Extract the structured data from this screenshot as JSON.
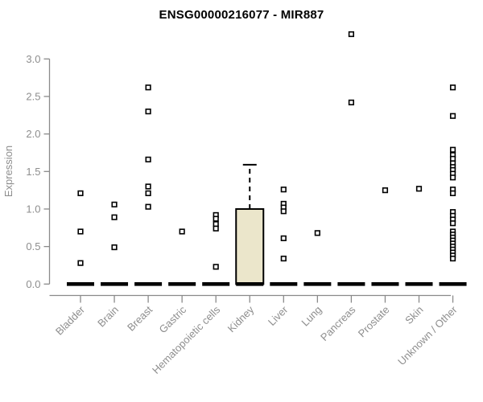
{
  "title": "ENSG00000216077 - MIR887",
  "chart_data": {
    "type": "boxplot",
    "title": "ENSG00000216077 - MIR887",
    "xlabel": "",
    "ylabel": "Expression",
    "ylim": [
      0.0,
      3.0
    ],
    "yticks": [
      "0.0",
      "0.5",
      "1.0",
      "1.5",
      "2.0",
      "2.5",
      "3.0"
    ],
    "grid": false,
    "legend_position": "none",
    "marker": "open-square",
    "categories": [
      "Bladder",
      "Brain",
      "Breast",
      "Gastric",
      "Hematopoietic cells",
      "Kidney",
      "Liver",
      "Lung",
      "Pancreas",
      "Prostate",
      "Skin",
      "Unknown / Other"
    ],
    "boxes": [
      {
        "category": "Bladder",
        "median": 0,
        "q1": 0,
        "q3": 0,
        "whisker_low": 0,
        "whisker_high": 0,
        "outliers": [
          1.21,
          0.7,
          0.28
        ]
      },
      {
        "category": "Brain",
        "median": 0,
        "q1": 0,
        "q3": 0,
        "whisker_low": 0,
        "whisker_high": 0,
        "outliers": [
          1.06,
          0.89,
          0.49
        ]
      },
      {
        "category": "Breast",
        "median": 0,
        "q1": 0,
        "q3": 0,
        "whisker_low": 0,
        "whisker_high": 0,
        "outliers": [
          2.62,
          2.3,
          1.66,
          1.3,
          1.21,
          1.03
        ]
      },
      {
        "category": "Gastric",
        "median": 0,
        "q1": 0,
        "q3": 0,
        "whisker_low": 0,
        "whisker_high": 0,
        "outliers": [
          0.7
        ]
      },
      {
        "category": "Hematopoietic cells",
        "median": 0,
        "q1": 0,
        "q3": 0,
        "whisker_low": 0,
        "whisker_high": 0,
        "outliers": [
          0.92,
          0.87,
          0.8,
          0.74,
          0.23
        ]
      },
      {
        "category": "Kidney",
        "median": 0,
        "q1": 0,
        "q3": 1.0,
        "whisker_low": 0,
        "whisker_high": 1.59,
        "outliers": []
      },
      {
        "category": "Liver",
        "median": 0,
        "q1": 0,
        "q3": 0,
        "whisker_low": 0,
        "whisker_high": 0,
        "outliers": [
          1.26,
          1.07,
          1.02,
          0.97,
          0.61,
          0.34
        ]
      },
      {
        "category": "Lung",
        "median": 0,
        "q1": 0,
        "q3": 0,
        "whisker_low": 0,
        "whisker_high": 0,
        "outliers": [
          0.68
        ]
      },
      {
        "category": "Pancreas",
        "median": 0,
        "q1": 0,
        "q3": 0,
        "whisker_low": 0,
        "whisker_high": 0,
        "outliers": [
          3.33,
          2.42
        ]
      },
      {
        "category": "Prostate",
        "median": 0,
        "q1": 0,
        "q3": 0,
        "whisker_low": 0,
        "whisker_high": 0,
        "outliers": [
          1.25
        ]
      },
      {
        "category": "Skin",
        "median": 0,
        "q1": 0,
        "q3": 0,
        "whisker_low": 0,
        "whisker_high": 0,
        "outliers": [
          1.27
        ]
      },
      {
        "category": "Unknown / Other",
        "median": 0,
        "q1": 0,
        "q3": 0,
        "whisker_low": 0,
        "whisker_high": 0,
        "outliers": [
          2.62,
          2.24,
          1.79,
          1.72,
          1.67,
          1.61,
          1.56,
          1.52,
          1.47,
          1.42,
          1.26,
          1.21,
          0.96,
          0.91,
          0.86,
          0.81,
          0.7,
          0.66,
          0.62,
          0.58,
          0.54,
          0.5,
          0.46,
          0.42,
          0.38,
          0.34
        ]
      }
    ],
    "colors": {
      "background": "#ffffff",
      "title": "#000000",
      "axis": "#8a8a8a",
      "tick_label": "#8e8e8e",
      "box_fill": "#ebe6cb",
      "box_border": "#000000",
      "median_bar": "#000000",
      "outlier": "#000000",
      "outlier_fill": "#ffffff"
    }
  }
}
